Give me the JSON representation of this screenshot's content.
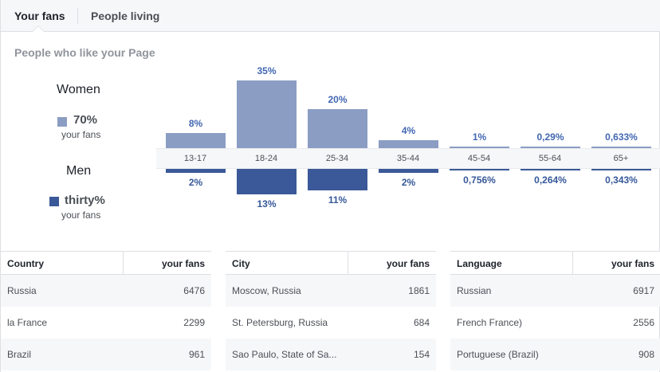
{
  "tabs": [
    {
      "label": "Your fans",
      "active": true
    },
    {
      "label": "People living",
      "active": false
    }
  ],
  "section_title": "People who like your Page",
  "gender": {
    "women": {
      "label": "Women",
      "percent": "70%",
      "sublabel": "your fans",
      "color": "#8b9dc3"
    },
    "men": {
      "label": "Men",
      "percent": "thirty%",
      "sublabel": "your fans",
      "color": "#3b5998"
    }
  },
  "chart_data": {
    "type": "bar",
    "categories": [
      "13-17",
      "18-24",
      "25-34",
      "35-44",
      "45-54",
      "55-64",
      "65+"
    ],
    "series": [
      {
        "name": "Women",
        "color": "#8b9dc3",
        "values": [
          8,
          35,
          20,
          4,
          1,
          0.29,
          0.633
        ],
        "labels": [
          "8%",
          "35%",
          "20%",
          "4%",
          "1%",
          "0,29%",
          "0,633%"
        ]
      },
      {
        "name": "Men",
        "color": "#3b5998",
        "values": [
          2,
          13,
          11,
          2,
          0.756,
          0.264,
          0.343
        ],
        "labels": [
          "2%",
          "13%",
          "11%",
          "2%",
          "0,756%",
          "0,264%",
          "0,343%"
        ]
      }
    ]
  },
  "tables": [
    {
      "col_a": "Country",
      "col_b": "your fans",
      "rows": [
        {
          "name": "Russia",
          "value": "6476"
        },
        {
          "name": "la France",
          "value": "2299"
        },
        {
          "name": "Brazil",
          "value": "961"
        }
      ]
    },
    {
      "col_a": "City",
      "col_b": "your fans",
      "rows": [
        {
          "name": "Moscow, Russia",
          "value": "1861"
        },
        {
          "name": "St. Petersburg, Russia",
          "value": "684"
        },
        {
          "name": "Sao Paulo, State of Sa...",
          "value": "154"
        }
      ]
    },
    {
      "col_a": "Language",
      "col_b": "your fans",
      "rows": [
        {
          "name": "Russian",
          "value": "6917"
        },
        {
          "name": "French France)",
          "value": "2556"
        },
        {
          "name": "Portuguese (Brazil)",
          "value": "908"
        }
      ]
    }
  ]
}
